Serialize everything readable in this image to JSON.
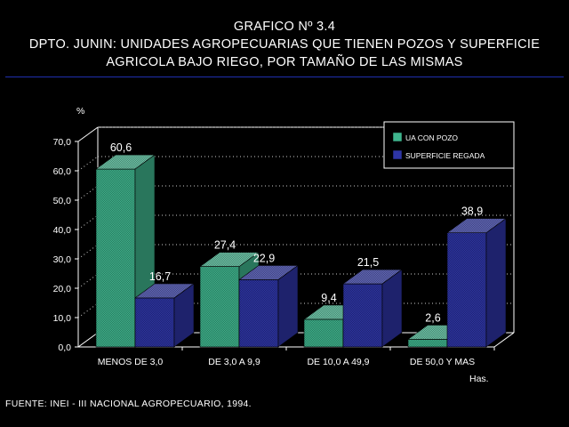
{
  "header": {
    "line1": "GRAFICO Nº 3.4",
    "line2": "DPTO. JUNIN: UNIDADES AGROPECUARIAS QUE TIENEN POZOS Y SUPERFICIE",
    "line3": "AGRICOLA BAJO RIEGO, POR TAMAÑO DE LAS MISMAS"
  },
  "footer": {
    "source": "FUENTE: INEI - III NACIONAL AGROPECUARIO, 1994."
  },
  "colors": {
    "series1": "#3fb58e",
    "series2": "#2e35a6",
    "axis": "#ffffff",
    "rule": "#1f2fae"
  },
  "chart_data": {
    "type": "bar",
    "title": "GRAFICO Nº 3.4",
    "ylabel": "%",
    "xlabel": "Has.",
    "ylim": [
      0,
      70
    ],
    "yticks": [
      "0,0",
      "10,0",
      "20,0",
      "30,0",
      "40,0",
      "50,0",
      "60,0",
      "70,0"
    ],
    "grid": true,
    "legend_position": "top-right",
    "categories": [
      "MENOS DE 3,0",
      "DE 3,0 A 9,9",
      "DE 10,0 A 49,9",
      "DE 50,0 Y MAS"
    ],
    "series": [
      {
        "name": "UA CON POZO",
        "values": [
          60.6,
          27.4,
          9.4,
          2.6
        ],
        "labels": [
          "60,6",
          "27,4",
          "9,4",
          "2,6"
        ]
      },
      {
        "name": "SUPERFICIE REGADA",
        "values": [
          16.7,
          22.9,
          21.5,
          38.9
        ],
        "labels": [
          "16,7",
          "22,9",
          "21,5",
          "38,9"
        ]
      }
    ]
  }
}
